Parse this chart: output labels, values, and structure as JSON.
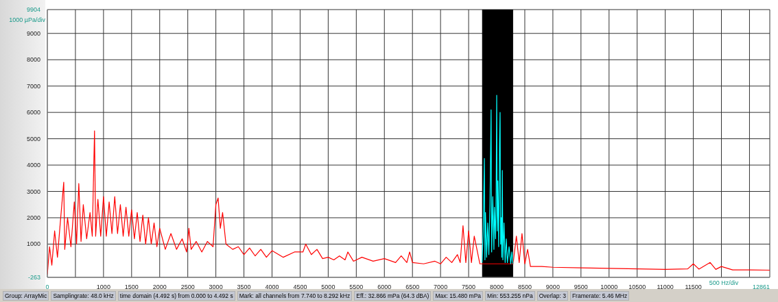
{
  "chart_data": {
    "type": "line",
    "xlabel": "500 Hz/div",
    "ylabel": "1000 µPa/div",
    "xlim": [
      0,
      12861
    ],
    "ylim": [
      -263,
      9904
    ],
    "xticks": [
      0,
      {
        "value": 500,
        "label": null
      },
      1000,
      1500,
      2000,
      2500,
      3000,
      3500,
      4000,
      4500,
      5000,
      5500,
      6000,
      6500,
      7000,
      7500,
      8000,
      8500,
      9000,
      9500,
      10000,
      10500,
      11000,
      11500,
      {
        "value": 12000,
        "label": null
      },
      {
        "value": 12500,
        "label": null
      },
      12861
    ],
    "yticks": [
      -263,
      1000,
      2000,
      3000,
      4000,
      5000,
      6000,
      7000,
      8000,
      9000,
      9904
    ],
    "grid": true,
    "bands": [
      {
        "axis": "x",
        "from": 7740,
        "to": 8292,
        "color": "#000000"
      }
    ],
    "series": [
      {
        "color": "#ff0000",
        "x": [
          0,
          40,
          80,
          130,
          180,
          230,
          292,
          310,
          360,
          420,
          480,
          520,
          560,
          600,
          640,
          700,
          760,
          800,
          840,
          860,
          900,
          950,
          1000,
          1050,
          1100,
          1150,
          1200,
          1250,
          1300,
          1350,
          1400,
          1450,
          1500,
          1550,
          1600,
          1650,
          1700,
          1750,
          1800,
          1850,
          1900,
          1950,
          2000,
          2100,
          2200,
          2300,
          2400,
          2480,
          2520,
          2560,
          2650,
          2750,
          2850,
          2950,
          3000,
          3040,
          3080,
          3120,
          3180,
          3300,
          3400,
          3500,
          3600,
          3700,
          3800,
          3900,
          4000,
          4200,
          4400,
          4550,
          4600,
          4700,
          4800,
          4900,
          5000,
          5100,
          5200,
          5300,
          5350,
          5450,
          5600,
          5800,
          6000,
          6200,
          6300,
          6400,
          6450,
          6500,
          6700,
          6900,
          7000,
          7100,
          7200,
          7300,
          7350,
          7400,
          7450,
          7500,
          7550,
          7600,
          7700,
          7740,
          8292,
          8350,
          8400,
          8450,
          8500,
          8550,
          8600,
          8800,
          9000,
          9500,
          10000,
          10500,
          11000,
          11400,
          11500,
          11600,
          11800,
          11900,
          12000,
          12200,
          12500,
          12861
        ],
        "values": [
          -150,
          900,
          200,
          1500,
          500,
          1800,
          3350,
          800,
          2000,
          900,
          2600,
          1000,
          3300,
          1100,
          2500,
          1200,
          2200,
          1300,
          5300,
          1300,
          2700,
          1300,
          2800,
          1300,
          2600,
          1400,
          2800,
          1400,
          2500,
          1300,
          2400,
          1300,
          2300,
          1200,
          2200,
          1100,
          2100,
          1000,
          2000,
          1000,
          1800,
          900,
          1600,
          800,
          1400,
          800,
          1200,
          700,
          1600,
          800,
          1100,
          700,
          1100,
          900,
          2500,
          2750,
          1600,
          2200,
          1000,
          800,
          900,
          600,
          850,
          550,
          800,
          500,
          750,
          500,
          700,
          700,
          1000,
          600,
          800,
          450,
          500,
          400,
          550,
          400,
          700,
          350,
          500,
          350,
          450,
          300,
          550,
          300,
          700,
          300,
          250,
          350,
          250,
          500,
          300,
          600,
          300,
          1700,
          300,
          1500,
          300,
          1300,
          250,
          250,
          250,
          1300,
          300,
          1400,
          250,
          800,
          150,
          150,
          120,
          100,
          80,
          60,
          40,
          60,
          250,
          50,
          300,
          40,
          150,
          20,
          20,
          10
        ]
      },
      {
        "color": "#00ffff",
        "x": [
          7740,
          7760,
          7780,
          7790,
          7800,
          7820,
          7840,
          7860,
          7880,
          7900,
          7910,
          7930,
          7950,
          7960,
          7980,
          7990,
          8000,
          8010,
          8020,
          8035,
          8050,
          8060,
          8070,
          8080,
          8090,
          8100,
          8110,
          8130,
          8150,
          8170,
          8190,
          8220,
          8250,
          8270,
          8292
        ],
        "values": [
          300,
          1500,
          4250,
          400,
          2200,
          500,
          1800,
          600,
          2500,
          6100,
          700,
          2800,
          800,
          2400,
          1200,
          3000,
          6650,
          1500,
          3400,
          900,
          4800,
          6000,
          1000,
          2000,
          500,
          3800,
          400,
          1800,
          300,
          1200,
          300,
          900,
          250,
          700,
          250
        ]
      }
    ],
    "annotations": [
      "Group: ArrayMic",
      "Samplingrate: 48.0 kHz",
      "time domain (4.492 s) from 0.000 to 4.492 s",
      "Mark: all channels from 7.740 to 8.292 kHz",
      "Eff.: 32.866 mPa (64.3 dBA)",
      "Max: 15.480 mPa",
      "Min: 553.255 nPa",
      "Overlap: 3",
      "Framerate: 5.46 MHz"
    ]
  }
}
